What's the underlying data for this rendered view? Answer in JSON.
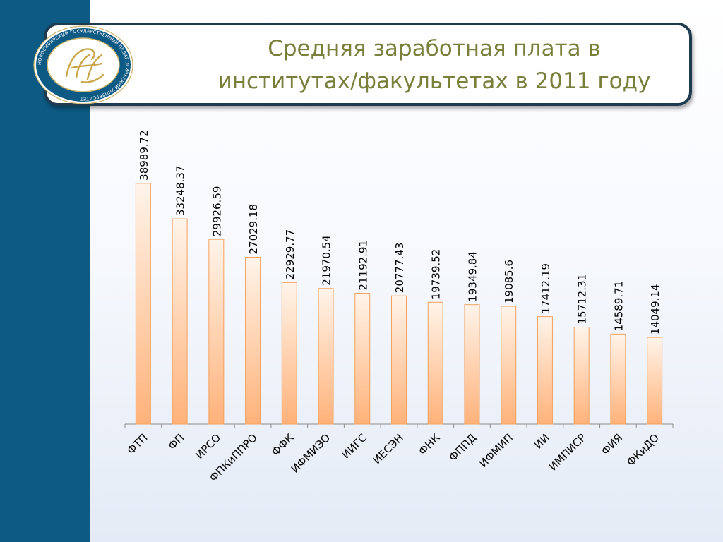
{
  "slide": {
    "title": "Средняя заработная плата в\nинститутах/факультетах в 2011 году"
  },
  "logo": {
    "text": "НОВОСИБИРСКИЙ ГОСУДАРСТВЕННЫЙ ПЕДАГОГИЧЕСКИЙ УНИВЕРСИТЕТ"
  },
  "colors": {
    "band": "#0d5a84",
    "title_border": "#1f3b4f",
    "title_text": "#7a7f3c",
    "bar_fill_top": "#fff4ea",
    "bar_fill_bottom": "#ffb27a",
    "bar_stroke": "#f5a15c"
  },
  "chart_data": {
    "type": "bar",
    "categories": [
      "ФТП",
      "ФП",
      "ИРСО",
      "ФПКиППРО",
      "ФФК",
      "ИФМИЭО",
      "ИИГС",
      "ИЕСЭН",
      "ФНК",
      "ФППД",
      "ИФМИП",
      "ИИ",
      "ИМПИСР",
      "ФИЯ",
      "ФКиДО"
    ],
    "values": [
      38989.72,
      33248.37,
      29926.59,
      27029.18,
      22929.77,
      21970.54,
      21192.91,
      20777.43,
      19739.52,
      19349.84,
      19085.6,
      17412.19,
      15712.31,
      14589.71,
      14049.14
    ],
    "data_labels": [
      "38989.72",
      "33248.37",
      "29926.59",
      "27029.18",
      "22929.77",
      "21970.54",
      "21192.91",
      "20777.43",
      "19739.52",
      "19349.84",
      "19085.6",
      "17412.19",
      "15712.31",
      "14589.71",
      "14049.14"
    ],
    "ylim": [
      0,
      40000
    ],
    "grid": false,
    "legend": "none"
  }
}
